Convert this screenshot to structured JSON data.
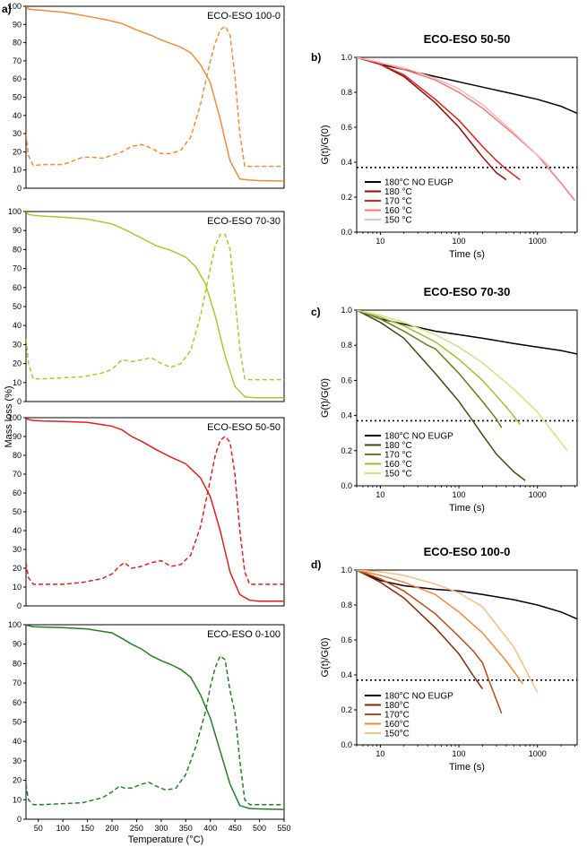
{
  "colors": {
    "black": "#000000",
    "orange_dark": "#f08a3c",
    "olive": "#b5c238",
    "red": "#dd1f1f",
    "green": "#2a7a2a"
  },
  "labels": {
    "panel_a": "a)",
    "panel_b": "b)",
    "panel_c": "c)",
    "panel_d": "d)",
    "shared_ylabel": "Mass loss (%)",
    "shared_xlabel": "Temperature (°C)"
  },
  "chart_data": [
    {
      "id": "tga1",
      "type": "line",
      "title": "ECO-ESO 100-0",
      "color": "#f08a3c",
      "xlabel": "Temperature (°C)",
      "ylabel": "Mass loss (%)",
      "xlim": [
        25,
        550
      ],
      "ylim": [
        0,
        100
      ],
      "yticks": [
        0,
        10,
        20,
        30,
        40,
        50,
        60,
        70,
        80,
        90,
        100
      ],
      "xticks": [],
      "series": [
        {
          "name": "mass",
          "style": "solid",
          "x": [
            25,
            30,
            40,
            60,
            80,
            100,
            130,
            160,
            190,
            220,
            250,
            280,
            300,
            320,
            340,
            360,
            380,
            400,
            420,
            440,
            460,
            480,
            500,
            530,
            550
          ],
          "y": [
            100,
            98.5,
            98.2,
            97.8,
            97.2,
            96.8,
            95.5,
            94,
            92.5,
            90.5,
            87,
            84,
            81.5,
            79.5,
            77.5,
            74.5,
            68,
            58,
            38,
            15,
            5,
            4.5,
            4.2,
            4,
            4
          ]
        },
        {
          "name": "derivative",
          "style": "dashed",
          "x": [
            25,
            30,
            40,
            60,
            80,
            100,
            120,
            140,
            160,
            180,
            200,
            220,
            240,
            260,
            280,
            300,
            320,
            340,
            360,
            380,
            400,
            410,
            420,
            430,
            440,
            450,
            460,
            470,
            480,
            500,
            530,
            550
          ],
          "y": [
            30,
            18,
            12.5,
            13,
            13,
            13,
            15,
            17,
            17,
            16.5,
            18,
            20,
            23,
            24,
            22,
            19,
            19,
            21,
            28,
            46,
            70,
            80,
            87,
            89,
            84,
            62,
            30,
            12,
            12,
            12,
            12,
            12
          ]
        }
      ]
    },
    {
      "id": "tga2",
      "type": "line",
      "title": "ECO-ESO 70-30",
      "color": "#b5c238",
      "xlabel": "Temperature (°C)",
      "ylabel": "Mass loss (%)",
      "xlim": [
        25,
        550
      ],
      "ylim": [
        0,
        100
      ],
      "yticks": [
        0,
        10,
        20,
        30,
        40,
        50,
        60,
        70,
        80,
        90,
        100
      ],
      "xticks": [],
      "series": [
        {
          "name": "mass",
          "style": "solid",
          "x": [
            25,
            30,
            40,
            60,
            100,
            150,
            200,
            230,
            260,
            290,
            320,
            350,
            370,
            390,
            410,
            430,
            450,
            470,
            490,
            520,
            550
          ],
          "y": [
            100,
            98.5,
            98,
            97.6,
            97,
            96,
            93.5,
            90,
            86,
            82,
            79.5,
            76,
            71,
            62,
            45,
            24,
            8,
            2.5,
            2,
            2,
            2
          ]
        },
        {
          "name": "derivative",
          "style": "dashed",
          "x": [
            25,
            30,
            40,
            60,
            100,
            140,
            180,
            200,
            220,
            240,
            260,
            280,
            300,
            320,
            340,
            360,
            380,
            400,
            410,
            420,
            430,
            440,
            450,
            460,
            470,
            480,
            500,
            550
          ],
          "y": [
            33,
            20,
            12,
            12,
            12.5,
            13,
            15,
            17,
            22,
            21,
            22,
            23,
            20,
            18,
            20,
            27,
            45,
            70,
            82,
            88,
            88,
            80,
            55,
            28,
            12,
            11.5,
            11.5,
            11.5
          ]
        }
      ]
    },
    {
      "id": "tga3",
      "type": "line",
      "title": "ECO-ESO 50-50",
      "color": "#dd1f1f",
      "xlabel": "Temperature (°C)",
      "ylabel": "Mass loss (%)",
      "xlim": [
        25,
        550
      ],
      "ylim": [
        0,
        100
      ],
      "yticks": [
        0,
        10,
        20,
        30,
        40,
        50,
        60,
        70,
        80,
        90,
        100
      ],
      "xticks": [],
      "series": [
        {
          "name": "mass",
          "style": "solid",
          "x": [
            25,
            30,
            40,
            60,
            100,
            150,
            200,
            220,
            240,
            260,
            290,
            320,
            350,
            380,
            400,
            420,
            440,
            460,
            480,
            500,
            550
          ],
          "y": [
            100,
            99,
            98.5,
            98.2,
            98,
            97.5,
            95.5,
            93.5,
            90,
            87.5,
            83,
            79,
            75.5,
            68,
            58,
            40,
            18,
            6,
            3,
            2.5,
            2.5
          ]
        },
        {
          "name": "derivative",
          "style": "dashed",
          "x": [
            25,
            30,
            40,
            60,
            100,
            140,
            180,
            200,
            215,
            225,
            240,
            260,
            280,
            300,
            320,
            340,
            360,
            380,
            400,
            410,
            420,
            430,
            440,
            450,
            460,
            470,
            480,
            500,
            550
          ],
          "y": [
            23,
            15,
            11.5,
            11.5,
            11.5,
            12.5,
            14.5,
            17,
            21,
            23,
            20,
            21,
            23,
            24,
            21,
            22,
            27,
            42,
            67,
            80,
            88,
            90,
            87,
            70,
            40,
            18,
            11.5,
            11.5,
            11.5
          ]
        }
      ]
    },
    {
      "id": "tga4",
      "type": "line",
      "title": "ECO-ESO 0-100",
      "color": "#2a7a2a",
      "xlabel": "Temperature (°C)",
      "ylabel": "Mass loss (%)",
      "xlim": [
        25,
        550
      ],
      "ylim": [
        0,
        100
      ],
      "yticks": [
        0,
        10,
        20,
        30,
        40,
        50,
        60,
        70,
        80,
        90,
        100
      ],
      "xticks": [
        50,
        100,
        150,
        200,
        250,
        300,
        350,
        400,
        450,
        500,
        550
      ],
      "series": [
        {
          "name": "mass",
          "style": "solid",
          "x": [
            25,
            30,
            40,
            60,
            100,
            150,
            200,
            220,
            240,
            260,
            280,
            300,
            320,
            340,
            360,
            380,
            400,
            420,
            440,
            460,
            480,
            500,
            550
          ],
          "y": [
            100,
            99.5,
            99,
            98.8,
            98.5,
            97.8,
            95.8,
            93,
            90,
            87.5,
            84,
            81.5,
            79.5,
            77,
            73,
            64,
            52,
            35,
            18,
            7,
            5.5,
            5.3,
            5
          ]
        },
        {
          "name": "derivative",
          "style": "dashed",
          "x": [
            25,
            30,
            40,
            60,
            100,
            140,
            180,
            200,
            215,
            225,
            240,
            260,
            275,
            290,
            310,
            330,
            350,
            370,
            390,
            400,
            410,
            420,
            430,
            440,
            450,
            460,
            470,
            480,
            500,
            550
          ],
          "y": [
            18,
            10,
            7.5,
            7.5,
            8,
            8.5,
            11,
            14,
            17,
            16,
            16,
            18,
            19,
            17,
            15,
            16,
            23,
            37,
            55,
            68,
            78,
            84,
            82,
            66,
            55,
            30,
            10,
            7.5,
            7.5,
            7.5
          ]
        }
      ]
    },
    {
      "id": "rel_b",
      "type": "line",
      "title": "ECO-ESO 50-50",
      "xlabel": "Time (s)",
      "ylabel": "G(t)/G(0)",
      "xscale": "log",
      "xlim": [
        5,
        3200
      ],
      "ylim": [
        0,
        1.0
      ],
      "yticks": [
        0.0,
        0.2,
        0.4,
        0.6,
        0.8,
        1.0
      ],
      "xticks": [
        10,
        100,
        1000
      ],
      "reference_line": 0.37,
      "series": [
        {
          "name": "180°C NO EUGP",
          "color": "#000000",
          "x": [
            5,
            10,
            20,
            50,
            100,
            200,
            500,
            1000,
            2000,
            3200
          ],
          "y": [
            1.0,
            0.96,
            0.93,
            0.89,
            0.86,
            0.83,
            0.79,
            0.76,
            0.72,
            0.68
          ]
        },
        {
          "name": "180 °C",
          "color": "#8b0a0a",
          "x": [
            5,
            10,
            20,
            50,
            100,
            150,
            200,
            300,
            400
          ],
          "y": [
            1.0,
            0.96,
            0.89,
            0.74,
            0.6,
            0.5,
            0.43,
            0.34,
            0.3
          ]
        },
        {
          "name": "170 °C",
          "color": "#dd1f1f",
          "x": [
            5,
            10,
            20,
            50,
            100,
            200,
            300,
            400,
            600
          ],
          "y": [
            1.0,
            0.96,
            0.9,
            0.76,
            0.64,
            0.49,
            0.41,
            0.36,
            0.3
          ]
        },
        {
          "name": "160 °C",
          "color": "#f07a7a",
          "x": [
            5,
            10,
            20,
            50,
            100,
            200,
            500,
            1000,
            2000,
            3000
          ],
          "y": [
            1.0,
            0.97,
            0.93,
            0.87,
            0.8,
            0.71,
            0.56,
            0.44,
            0.28,
            0.18
          ]
        },
        {
          "name": "150 °C",
          "color": "#f4b8b8",
          "x": [
            5,
            10,
            20,
            50,
            100,
            200,
            500,
            1000,
            1400
          ],
          "y": [
            1.0,
            0.97,
            0.94,
            0.88,
            0.82,
            0.73,
            0.57,
            0.44,
            0.38
          ]
        }
      ]
    },
    {
      "id": "rel_c",
      "type": "line",
      "title": "ECO-ESO 70-30",
      "xlabel": "Time (s)",
      "ylabel": "G(t)/G(0)",
      "xscale": "log",
      "xlim": [
        5,
        3200
      ],
      "ylim": [
        0,
        1.0
      ],
      "yticks": [
        0.0,
        0.2,
        0.4,
        0.6,
        0.8,
        1.0
      ],
      "xticks": [
        10,
        100,
        1000
      ],
      "reference_line": 0.37,
      "series": [
        {
          "name": "180°C NO EUGP",
          "color": "#000000",
          "x": [
            5,
            10,
            20,
            50,
            100,
            200,
            500,
            1000,
            2000,
            3200
          ],
          "y": [
            1.0,
            0.95,
            0.92,
            0.88,
            0.86,
            0.84,
            0.81,
            0.79,
            0.77,
            0.75
          ]
        },
        {
          "name": "180 °C",
          "color": "#3d4a12",
          "x": [
            5,
            10,
            20,
            50,
            100,
            150,
            200,
            300,
            500,
            700
          ],
          "y": [
            1.0,
            0.93,
            0.84,
            0.64,
            0.48,
            0.37,
            0.29,
            0.18,
            0.08,
            0.03
          ]
        },
        {
          "name": "170 °C",
          "color": "#6a7a1c",
          "x": [
            5,
            10,
            20,
            40,
            50,
            100,
            200,
            300,
            350
          ],
          "y": [
            1.0,
            0.95,
            0.88,
            0.8,
            0.78,
            0.64,
            0.48,
            0.38,
            0.33
          ]
        },
        {
          "name": "160 °C",
          "color": "#a8b832",
          "x": [
            5,
            10,
            20,
            50,
            100,
            200,
            400,
            600
          ],
          "y": [
            1.0,
            0.96,
            0.91,
            0.82,
            0.72,
            0.6,
            0.45,
            0.35
          ]
        },
        {
          "name": "150 °C",
          "color": "#cfe08a",
          "x": [
            5,
            10,
            20,
            50,
            100,
            200,
            500,
            1000,
            2400
          ],
          "y": [
            1.0,
            0.97,
            0.93,
            0.86,
            0.79,
            0.7,
            0.55,
            0.42,
            0.2
          ]
        }
      ]
    },
    {
      "id": "rel_d",
      "type": "line",
      "title": "ECO-ESO 100-0",
      "xlabel": "Time (s)",
      "ylabel": "G(t)/G(0)",
      "xscale": "log",
      "xlim": [
        5,
        3200
      ],
      "ylim": [
        0,
        1.0
      ],
      "yticks": [
        0.0,
        0.2,
        0.4,
        0.6,
        0.8,
        1.0
      ],
      "xticks": [
        10,
        100,
        1000
      ],
      "reference_line": 0.37,
      "series": [
        {
          "name": "180°C NO EUGP",
          "color": "#000000",
          "x": [
            5,
            10,
            20,
            50,
            100,
            200,
            500,
            1000,
            2000,
            3200
          ],
          "y": [
            1.0,
            0.94,
            0.91,
            0.89,
            0.88,
            0.86,
            0.83,
            0.8,
            0.76,
            0.72
          ]
        },
        {
          "name": "180°C",
          "color": "#7a2a08",
          "x": [
            5,
            10,
            20,
            50,
            100,
            150,
            200
          ],
          "y": [
            1.0,
            0.93,
            0.84,
            0.67,
            0.52,
            0.4,
            0.32
          ]
        },
        {
          "name": "170°C",
          "color": "#b24a16",
          "x": [
            5,
            10,
            20,
            50,
            100,
            150,
            200,
            250,
            350
          ],
          "y": [
            1.0,
            0.95,
            0.88,
            0.75,
            0.62,
            0.54,
            0.47,
            0.35,
            0.18
          ]
        },
        {
          "name": "160°C",
          "color": "#ee8a40",
          "x": [
            5,
            10,
            20,
            50,
            100,
            200,
            400,
            650
          ],
          "y": [
            1.0,
            0.97,
            0.93,
            0.86,
            0.76,
            0.64,
            0.48,
            0.35
          ]
        },
        {
          "name": "150°C",
          "color": "#f6bd8c",
          "x": [
            5,
            10,
            20,
            50,
            100,
            200,
            500,
            1000
          ],
          "y": [
            1.0,
            0.99,
            0.97,
            0.92,
            0.87,
            0.79,
            0.56,
            0.3
          ]
        }
      ]
    }
  ]
}
